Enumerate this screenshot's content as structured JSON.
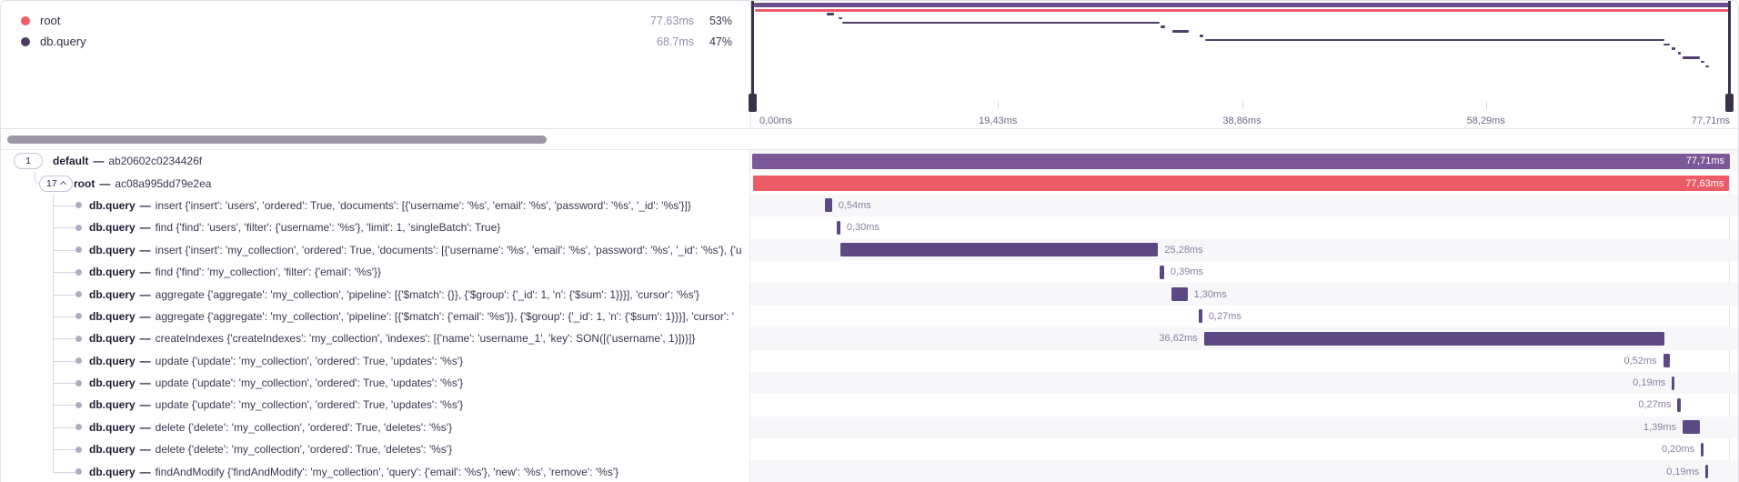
{
  "colors": {
    "root_red": "#ec5c66",
    "span_purple": "#5c4983",
    "txn_purple": "#7d5899",
    "minimap_span": "#50406b",
    "minimap_default": "#6a4f8c"
  },
  "legend": {
    "items": [
      {
        "name": "root",
        "duration": "77.63ms",
        "percent": "53%",
        "color": "#ee5d68"
      },
      {
        "name": "db.query",
        "duration": "68.7ms",
        "percent": "47%",
        "color": "#4f3a63"
      }
    ]
  },
  "minimap": {
    "axis_labels": [
      "0,00ms",
      "19,43ms",
      "38,86ms",
      "58,29ms",
      "77,71ms"
    ]
  },
  "trace": {
    "total_ms": 77.71,
    "rows": [
      {
        "type": "txn",
        "badge": "1",
        "collapse": false,
        "name": "default",
        "sep": "—",
        "desc": "ab20602c0234426f",
        "bar": {
          "start_ms": 0.0,
          "duration_ms": 77.71,
          "label": "77,71ms",
          "color": "txn_purple",
          "label_pos": "inside"
        }
      },
      {
        "type": "txn",
        "badge": "17",
        "collapse": true,
        "name": "root",
        "sep": "—",
        "desc": "ac08a995dd79e2ea",
        "bar": {
          "start_ms": 0.04,
          "duration_ms": 77.63,
          "label": "77,63ms",
          "color": "root_red",
          "label_pos": "inside"
        }
      },
      {
        "type": "span",
        "name": "db.query",
        "sep": "—",
        "desc": "insert {'insert': 'users', 'ordered': True, 'documents': [{'username': '%s', 'email': '%s', 'password': '%s', '_id': '%s'}]}",
        "bar": {
          "start_ms": 5.8,
          "duration_ms": 0.54,
          "label": "0,54ms",
          "color": "span_purple",
          "label_pos": "right"
        }
      },
      {
        "type": "span",
        "name": "db.query",
        "sep": "—",
        "desc": "find {'find': 'users', 'filter': {'username': '%s'}, 'limit': 1, 'singleBatch': True}",
        "bar": {
          "start_ms": 6.7,
          "duration_ms": 0.3,
          "label": "0,30ms",
          "color": "span_purple",
          "label_pos": "right"
        }
      },
      {
        "type": "span",
        "name": "db.query",
        "sep": "—",
        "desc": "insert {'insert': 'my_collection', 'ordered': True, 'documents': [{'username': '%s', 'email': '%s', 'password': '%s', '_id': '%s'}, {'u",
        "bar": {
          "start_ms": 6.99,
          "duration_ms": 25.28,
          "label": "25,28ms",
          "color": "span_purple",
          "label_pos": "right"
        }
      },
      {
        "type": "span",
        "name": "db.query",
        "sep": "—",
        "desc": "find {'find': 'my_collection', 'filter': {'email': '%s'}}",
        "bar": {
          "start_ms": 32.35,
          "duration_ms": 0.39,
          "label": "0,39ms",
          "color": "span_purple",
          "label_pos": "right"
        }
      },
      {
        "type": "span",
        "name": "db.query",
        "sep": "—",
        "desc": "aggregate {'aggregate': 'my_collection', 'pipeline': [{'$match': {}}, {'$group': {'_id': 1, 'n': {'$sum': 1}}}], 'cursor': '%s'}",
        "bar": {
          "start_ms": 33.3,
          "duration_ms": 1.3,
          "label": "1,30ms",
          "color": "span_purple",
          "label_pos": "right"
        }
      },
      {
        "type": "span",
        "name": "db.query",
        "sep": "—",
        "desc": "aggregate {'aggregate': 'my_collection', 'pipeline': [{'$match': {'email': '%s'}}, {'$group': {'_id': 1, 'n': {'$sum': 1}}}], 'cursor': '",
        "bar": {
          "start_ms": 35.5,
          "duration_ms": 0.27,
          "label": "0,27ms",
          "color": "span_purple",
          "label_pos": "right"
        }
      },
      {
        "type": "span",
        "name": "db.query",
        "sep": "—",
        "desc": "createIndexes {'createIndexes': 'my_collection', 'indexes': [{'name': 'username_1', 'key': SON([('username', 1)])}]}",
        "bar": {
          "start_ms": 35.9,
          "duration_ms": 36.62,
          "label": "36,62ms",
          "color": "span_purple",
          "label_pos": "left"
        }
      },
      {
        "type": "span",
        "name": "db.query",
        "sep": "—",
        "desc": "update {'update': 'my_collection', 'ordered': True, 'updates': '%s'}",
        "bar": {
          "start_ms": 72.4,
          "duration_ms": 0.52,
          "label": "0,52ms",
          "color": "span_purple",
          "label_pos": "left"
        }
      },
      {
        "type": "span",
        "name": "db.query",
        "sep": "—",
        "desc": "update {'update': 'my_collection', 'ordered': True, 'updates': '%s'}",
        "bar": {
          "start_ms": 73.1,
          "duration_ms": 0.19,
          "label": "0,19ms",
          "color": "span_purple",
          "label_pos": "left"
        }
      },
      {
        "type": "span",
        "name": "db.query",
        "sep": "—",
        "desc": "update {'update': 'my_collection', 'ordered': True, 'updates': '%s'}",
        "bar": {
          "start_ms": 73.55,
          "duration_ms": 0.27,
          "label": "0,27ms",
          "color": "span_purple",
          "label_pos": "left"
        }
      },
      {
        "type": "span",
        "name": "db.query",
        "sep": "—",
        "desc": "delete {'delete': 'my_collection', 'ordered': True, 'deletes': '%s'}",
        "bar": {
          "start_ms": 73.95,
          "duration_ms": 1.39,
          "label": "1,39ms",
          "color": "span_purple",
          "label_pos": "left"
        }
      },
      {
        "type": "span",
        "name": "db.query",
        "sep": "—",
        "desc": "delete {'delete': 'my_collection', 'ordered': True, 'deletes': '%s'}",
        "bar": {
          "start_ms": 75.4,
          "duration_ms": 0.2,
          "label": "0,20ms",
          "color": "span_purple",
          "label_pos": "left"
        }
      },
      {
        "type": "span",
        "name": "db.query",
        "sep": "—",
        "desc": "findAndModify {'findAndModify': 'my_collection', 'query': {'email': '%s'}, 'new': '%s', 'remove': '%s'}",
        "bar": {
          "start_ms": 75.78,
          "duration_ms": 0.19,
          "label": "0,19ms",
          "color": "span_purple",
          "label_pos": "left"
        }
      }
    ]
  }
}
